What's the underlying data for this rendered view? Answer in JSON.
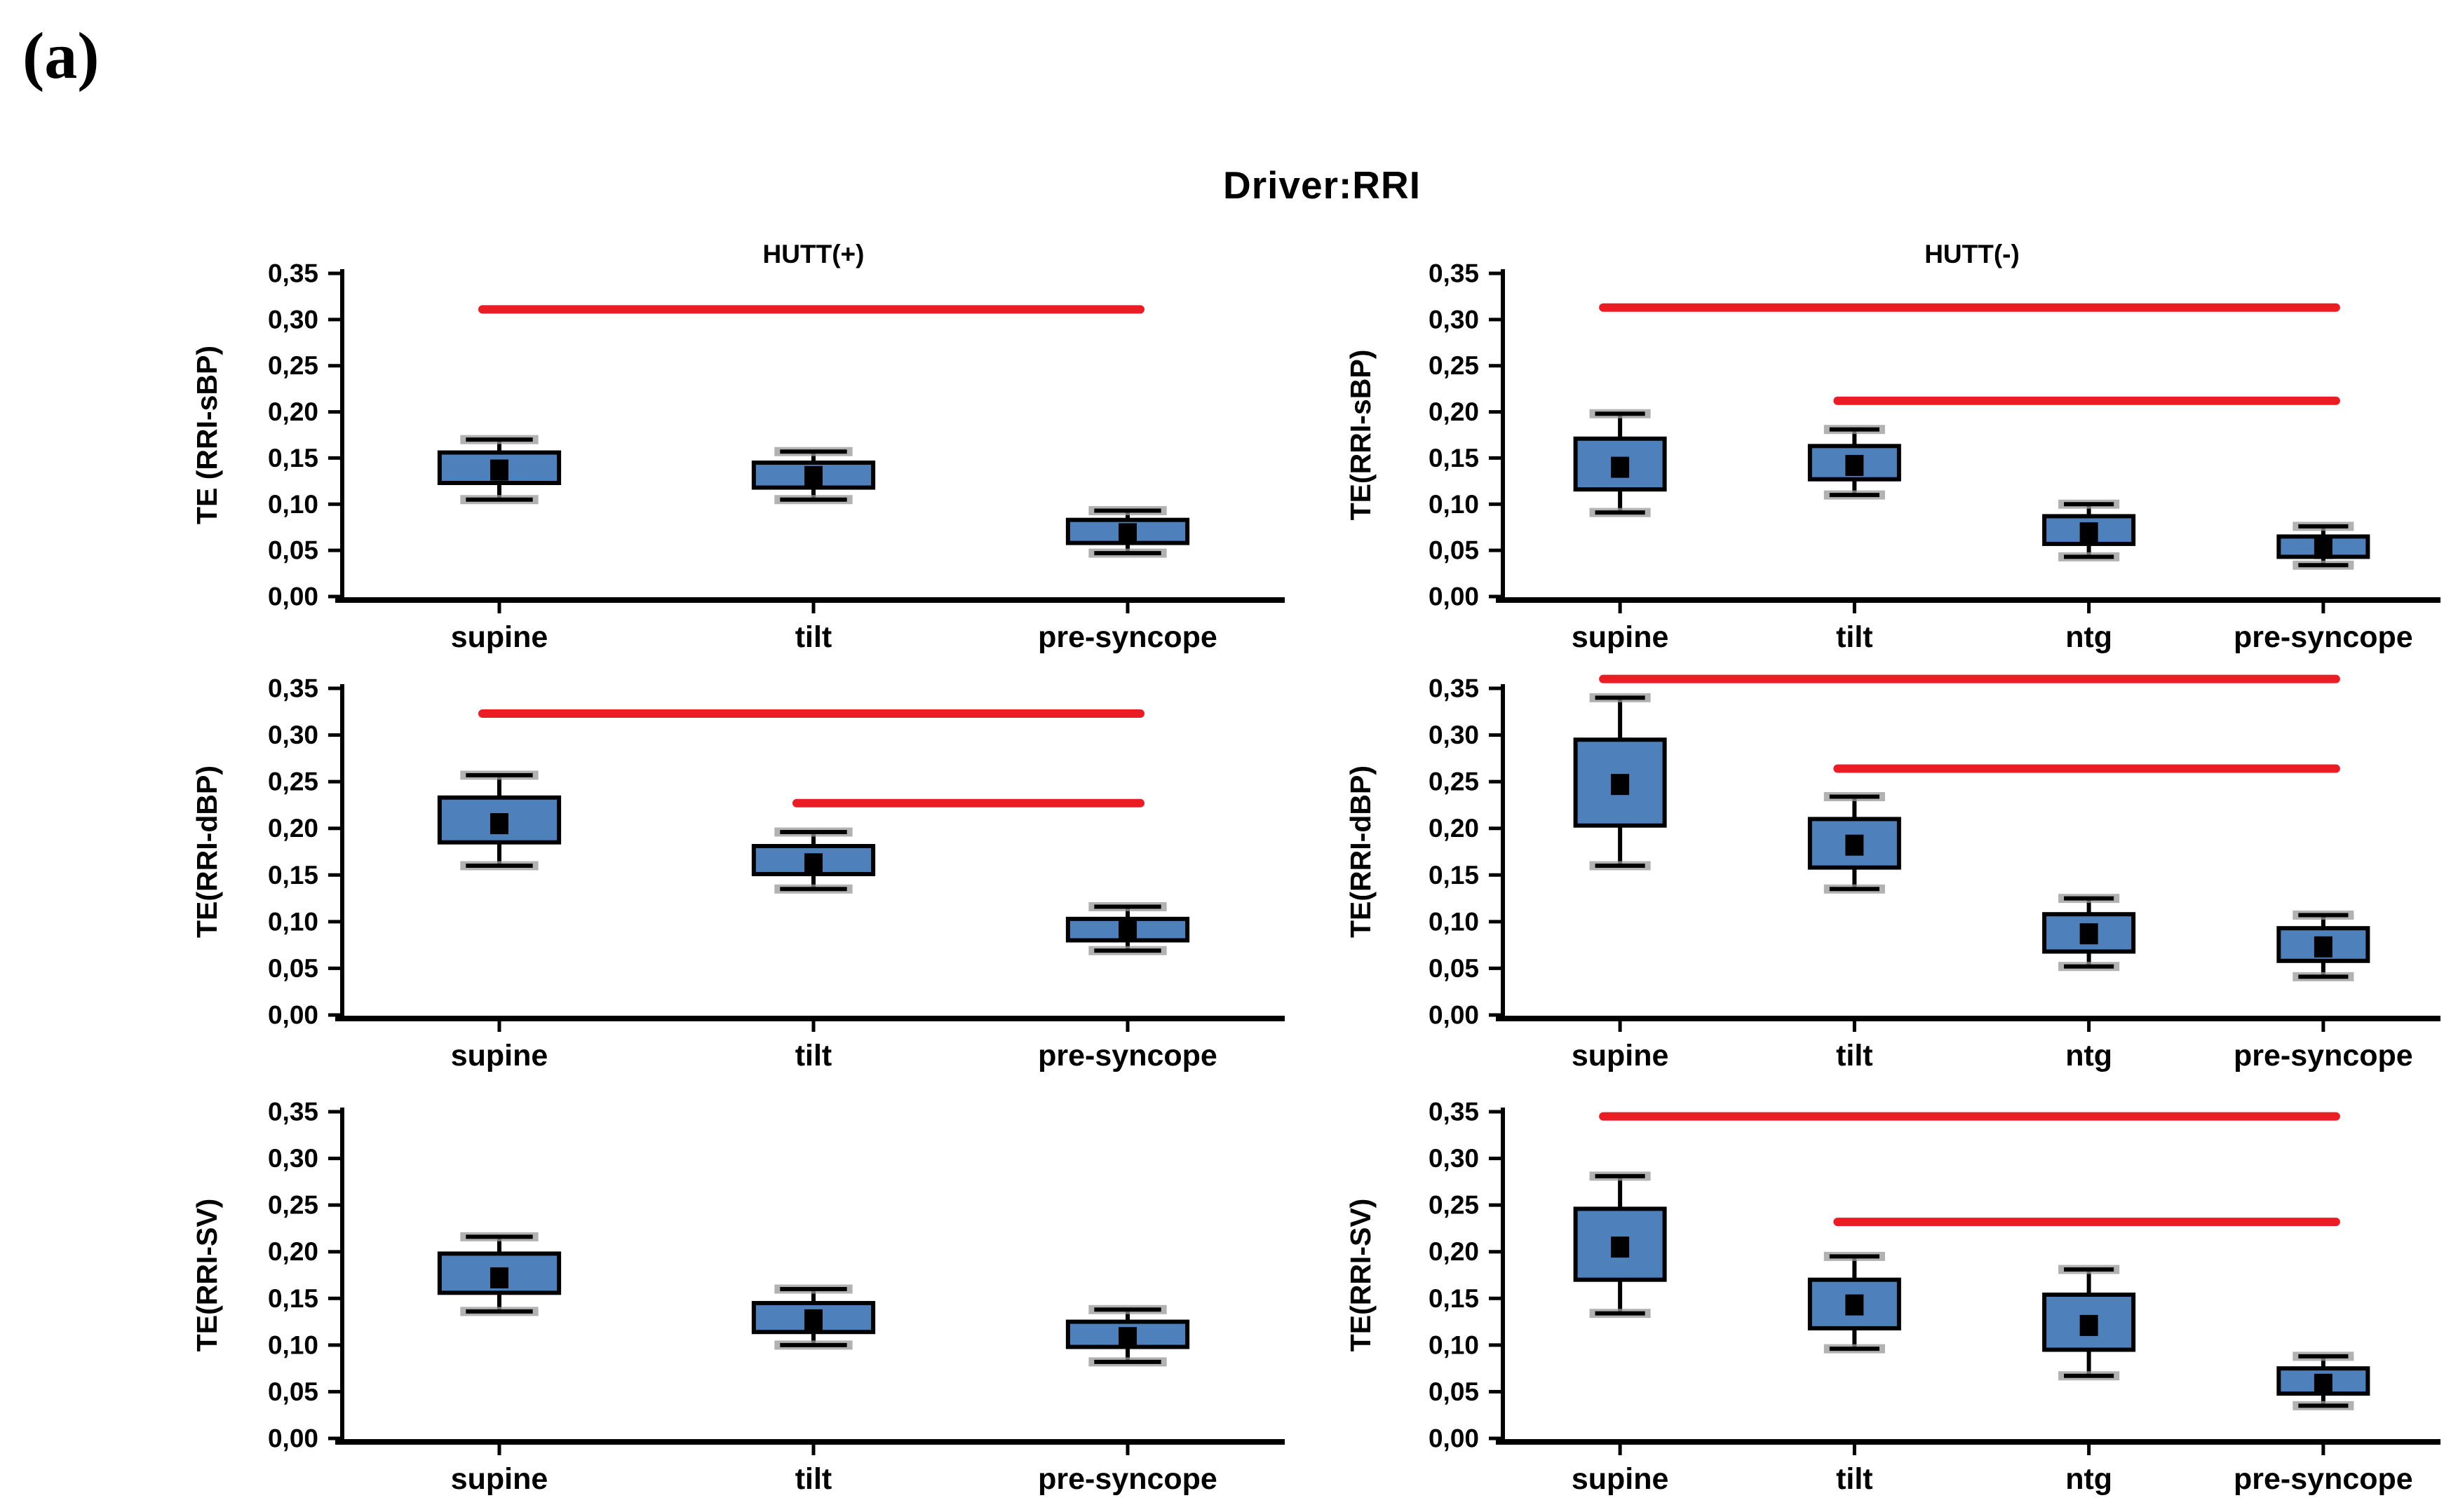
{
  "figure": {
    "panel_label": "(a)",
    "title": "Driver:RRI",
    "column_headers": [
      "HUTT(+)",
      "HUTT(-)"
    ]
  },
  "colors": {
    "background": "#FFFFFF",
    "box_fill": "#4E80BC",
    "box_border": "#000000",
    "mean_marker": "#000000",
    "whisker": "#000000",
    "whisker_cap_halo": "#999999",
    "significance_line": "#EC1C24",
    "axis": "#000000",
    "text": "#000000"
  },
  "chart_data": [
    {
      "type": "box",
      "panel": "top-left",
      "column": "HUTT(+)",
      "ylabel": "TE (RRI-sBP)",
      "ylim": [
        0,
        0.35
      ],
      "ytick_labels": [
        "0,00",
        "0,05",
        "0,10",
        "0,15",
        "0,20",
        "0,25",
        "0,30",
        "0,35"
      ],
      "categories": [
        "supine",
        "tilt",
        "pre-syncope"
      ],
      "boxes": [
        {
          "category": "supine",
          "whisker_low": 0.105,
          "q1": 0.123,
          "mean": 0.137,
          "q3": 0.156,
          "whisker_high": 0.17
        },
        {
          "category": "tilt",
          "whisker_low": 0.105,
          "q1": 0.118,
          "mean": 0.13,
          "q3": 0.145,
          "whisker_high": 0.157
        },
        {
          "category": "pre-syncope",
          "whisker_low": 0.047,
          "q1": 0.058,
          "mean": 0.068,
          "q3": 0.083,
          "whisker_high": 0.093
        }
      ],
      "significance_lines": [
        {
          "y": 0.311,
          "from_category": "supine",
          "to_category": "pre-syncope"
        }
      ]
    },
    {
      "type": "box",
      "panel": "top-right",
      "column": "HUTT(-)",
      "ylabel": "TE(RRI-sBP)",
      "ylim": [
        0,
        0.35
      ],
      "ytick_labels": [
        "0,00",
        "0,05",
        "0,10",
        "0,15",
        "0,20",
        "0,25",
        "0,30",
        "0,35"
      ],
      "categories": [
        "supine",
        "tilt",
        "ntg",
        "pre-syncope"
      ],
      "boxes": [
        {
          "category": "supine",
          "whisker_low": 0.091,
          "q1": 0.116,
          "mean": 0.14,
          "q3": 0.171,
          "whisker_high": 0.198
        },
        {
          "category": "tilt",
          "whisker_low": 0.11,
          "q1": 0.127,
          "mean": 0.142,
          "q3": 0.163,
          "whisker_high": 0.181
        },
        {
          "category": "ntg",
          "whisker_low": 0.043,
          "q1": 0.057,
          "mean": 0.069,
          "q3": 0.087,
          "whisker_high": 0.1
        },
        {
          "category": "pre-syncope",
          "whisker_low": 0.034,
          "q1": 0.043,
          "mean": 0.052,
          "q3": 0.065,
          "whisker_high": 0.076
        }
      ],
      "significance_lines": [
        {
          "y": 0.313,
          "from_category": "supine",
          "to_category": "pre-syncope"
        },
        {
          "y": 0.212,
          "from_category": "tilt",
          "to_category": "pre-syncope"
        }
      ]
    },
    {
      "type": "box",
      "panel": "middle-left",
      "column": "HUTT(+)",
      "ylabel": "TE(RRI-dBP)",
      "ylim": [
        0,
        0.35
      ],
      "ytick_labels": [
        "0,00",
        "0,05",
        "0,10",
        "0,15",
        "0,20",
        "0,25",
        "0,30",
        "0,35"
      ],
      "categories": [
        "supine",
        "tilt",
        "pre-syncope"
      ],
      "boxes": [
        {
          "category": "supine",
          "whisker_low": 0.16,
          "q1": 0.185,
          "mean": 0.205,
          "q3": 0.233,
          "whisker_high": 0.257
        },
        {
          "category": "tilt",
          "whisker_low": 0.135,
          "q1": 0.151,
          "mean": 0.162,
          "q3": 0.181,
          "whisker_high": 0.196
        },
        {
          "category": "pre-syncope",
          "whisker_low": 0.069,
          "q1": 0.08,
          "mean": 0.091,
          "q3": 0.103,
          "whisker_high": 0.116
        }
      ],
      "significance_lines": [
        {
          "y": 0.323,
          "from_category": "supine",
          "to_category": "pre-syncope"
        },
        {
          "y": 0.227,
          "from_category": "tilt",
          "to_category": "pre-syncope"
        }
      ]
    },
    {
      "type": "box",
      "panel": "middle-right",
      "column": "HUTT(-)",
      "ylabel": "TE(RRI-dBP)",
      "ylim": [
        0,
        0.35
      ],
      "ytick_labels": [
        "0,00",
        "0,05",
        "0,10",
        "0,15",
        "0,20",
        "0,25",
        "0,30",
        "0,35"
      ],
      "categories": [
        "supine",
        "tilt",
        "ntg",
        "pre-syncope"
      ],
      "boxes": [
        {
          "category": "supine",
          "whisker_low": 0.16,
          "q1": 0.203,
          "mean": 0.247,
          "q3": 0.295,
          "whisker_high": 0.34
        },
        {
          "category": "tilt",
          "whisker_low": 0.135,
          "q1": 0.158,
          "mean": 0.182,
          "q3": 0.21,
          "whisker_high": 0.234
        },
        {
          "category": "ntg",
          "whisker_low": 0.052,
          "q1": 0.068,
          "mean": 0.087,
          "q3": 0.108,
          "whisker_high": 0.125
        },
        {
          "category": "pre-syncope",
          "whisker_low": 0.041,
          "q1": 0.058,
          "mean": 0.073,
          "q3": 0.093,
          "whisker_high": 0.107
        }
      ],
      "significance_lines": [
        {
          "y": 0.36,
          "from_category": "supine",
          "to_category": "pre-syncope"
        },
        {
          "y": 0.264,
          "from_category": "tilt",
          "to_category": "pre-syncope"
        }
      ]
    },
    {
      "type": "box",
      "panel": "bottom-left",
      "column": "HUTT(+)",
      "ylabel": "TE(RRI-SV)",
      "ylim": [
        0,
        0.35
      ],
      "ytick_labels": [
        "0,00",
        "0,05",
        "0,10",
        "0,15",
        "0,20",
        "0,25",
        "0,30",
        "0,35"
      ],
      "categories": [
        "supine",
        "tilt",
        "pre-syncope"
      ],
      "boxes": [
        {
          "category": "supine",
          "whisker_low": 0.136,
          "q1": 0.156,
          "mean": 0.172,
          "q3": 0.198,
          "whisker_high": 0.216
        },
        {
          "category": "tilt",
          "whisker_low": 0.1,
          "q1": 0.114,
          "mean": 0.127,
          "q3": 0.145,
          "whisker_high": 0.16
        },
        {
          "category": "pre-syncope",
          "whisker_low": 0.082,
          "q1": 0.098,
          "mean": 0.108,
          "q3": 0.125,
          "whisker_high": 0.138
        }
      ],
      "significance_lines": []
    },
    {
      "type": "box",
      "panel": "bottom-right",
      "column": "HUTT(-)",
      "ylabel": "TE(RRI-SV)",
      "ylim": [
        0,
        0.35
      ],
      "ytick_labels": [
        "0,00",
        "0,05",
        "0,10",
        "0,15",
        "0,20",
        "0,25",
        "0,30",
        "0,35"
      ],
      "categories": [
        "supine",
        "tilt",
        "ntg",
        "pre-syncope"
      ],
      "boxes": [
        {
          "category": "supine",
          "whisker_low": 0.134,
          "q1": 0.17,
          "mean": 0.205,
          "q3": 0.246,
          "whisker_high": 0.281
        },
        {
          "category": "tilt",
          "whisker_low": 0.096,
          "q1": 0.118,
          "mean": 0.143,
          "q3": 0.17,
          "whisker_high": 0.195
        },
        {
          "category": "ntg",
          "whisker_low": 0.067,
          "q1": 0.095,
          "mean": 0.121,
          "q3": 0.154,
          "whisker_high": 0.181
        },
        {
          "category": "pre-syncope",
          "whisker_low": 0.035,
          "q1": 0.048,
          "mean": 0.058,
          "q3": 0.075,
          "whisker_high": 0.088
        }
      ],
      "significance_lines": [
        {
          "y": 0.345,
          "from_category": "supine",
          "to_category": "pre-syncope"
        },
        {
          "y": 0.232,
          "from_category": "tilt",
          "to_category": "pre-syncope"
        }
      ]
    }
  ]
}
